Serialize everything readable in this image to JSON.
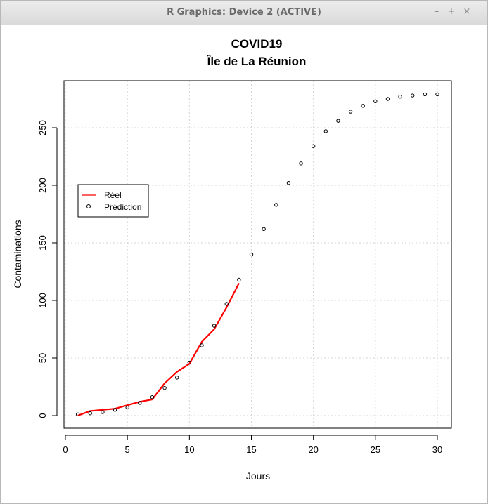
{
  "window": {
    "title": "R Graphics: Device 2 (ACTIVE)",
    "controls": {
      "minimize": "–",
      "maximize": "+",
      "close": "×"
    }
  },
  "chart_data": {
    "type": "line",
    "title": "COVID19",
    "subtitle": "Île de La Réunion",
    "xlabel": "Jours",
    "ylabel": "Contaminations",
    "xlim": [
      1,
      30
    ],
    "ylim": [
      0,
      280
    ],
    "xticks": [
      0,
      5,
      10,
      15,
      20,
      25,
      30
    ],
    "yticks": [
      0,
      50,
      100,
      150,
      200,
      250
    ],
    "grid": true,
    "legend_position": "left",
    "series": [
      {
        "name": "Réel",
        "kind": "line",
        "color": "#ff0000",
        "x": [
          1,
          2,
          3,
          4,
          5,
          6,
          7,
          8,
          9,
          10,
          11,
          12,
          13,
          14
        ],
        "y": [
          0,
          4,
          5,
          6,
          9,
          12,
          14,
          28,
          38,
          45,
          64,
          75,
          94,
          115
        ]
      },
      {
        "name": "Prédiction",
        "kind": "points",
        "color": "#000000",
        "x": [
          1,
          2,
          3,
          4,
          5,
          6,
          7,
          8,
          9,
          10,
          11,
          12,
          13,
          14,
          15,
          16,
          17,
          18,
          19,
          20,
          21,
          22,
          23,
          24,
          25,
          26,
          27,
          28,
          29,
          30
        ],
        "y": [
          1,
          2,
          3,
          5,
          7,
          11,
          16,
          24,
          33,
          46,
          61,
          78,
          97,
          118,
          140,
          162,
          183,
          202,
          219,
          234,
          247,
          256,
          264,
          269,
          273,
          275,
          277,
          278,
          279,
          279
        ]
      }
    ]
  }
}
